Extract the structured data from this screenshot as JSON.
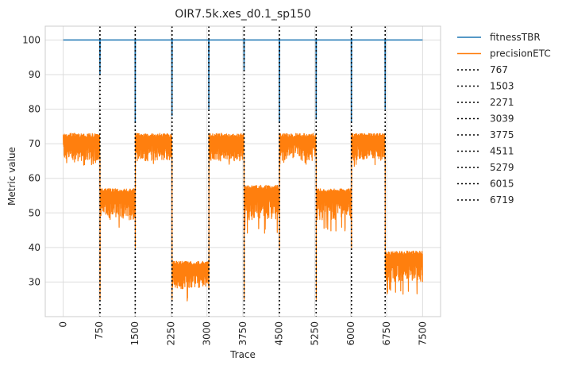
{
  "chart_data": {
    "type": "line",
    "title": "OIR7.5k.xes_d0.1_sp150",
    "xlabel": "Trace",
    "ylabel": "Metric value",
    "xlim": [
      -375,
      7875
    ],
    "ylim": [
      20,
      104
    ],
    "xticks": [
      0,
      750,
      1500,
      2250,
      3000,
      3750,
      4500,
      5250,
      6000,
      6750,
      7500
    ],
    "xtick_labels": [
      "0",
      "750",
      "1500",
      "2250",
      "3000",
      "3750",
      "4500",
      "5250",
      "6000",
      "6750",
      "7500"
    ],
    "yticks": [
      30,
      40,
      50,
      60,
      70,
      80,
      90,
      100
    ],
    "ytick_labels": [
      "30",
      "40",
      "50",
      "60",
      "70",
      "80",
      "90",
      "100"
    ],
    "grid": true,
    "legend_position": "outside-right",
    "series": [
      {
        "name": "fitnessTBR",
        "color": "#1f77b4",
        "base": 100,
        "dips": [
          [
            767,
            90
          ],
          [
            1503,
            76
          ],
          [
            2271,
            78
          ],
          [
            3039,
            80
          ],
          [
            3775,
            91
          ],
          [
            4511,
            76
          ],
          [
            5279,
            77
          ],
          [
            6015,
            76
          ],
          [
            6719,
            80
          ]
        ]
      },
      {
        "name": "precisionETC",
        "color": "#ff7f0e",
        "segments": [
          {
            "x_start": 0,
            "x_end": 767,
            "hi": 73,
            "lo": 65,
            "min_dip": 63
          },
          {
            "x_start": 767,
            "x_end": 1503,
            "hi": 57,
            "lo": 48,
            "min_dip": 44
          },
          {
            "x_start": 1503,
            "x_end": 2271,
            "hi": 73,
            "lo": 65,
            "min_dip": 63
          },
          {
            "x_start": 2271,
            "x_end": 3039,
            "hi": 36,
            "lo": 28,
            "min_dip": 24
          },
          {
            "x_start": 3039,
            "x_end": 3775,
            "hi": 73,
            "lo": 65,
            "min_dip": 64
          },
          {
            "x_start": 3775,
            "x_end": 4511,
            "hi": 58,
            "lo": 48,
            "min_dip": 44
          },
          {
            "x_start": 4511,
            "x_end": 5279,
            "hi": 73,
            "lo": 65,
            "min_dip": 64
          },
          {
            "x_start": 5279,
            "x_end": 6015,
            "hi": 57,
            "lo": 48,
            "min_dip": 44
          },
          {
            "x_start": 6015,
            "x_end": 6719,
            "hi": 73,
            "lo": 65,
            "min_dip": 63
          },
          {
            "x_start": 6719,
            "x_end": 7500,
            "hi": 39,
            "lo": 30,
            "min_dip": 26
          }
        ],
        "transition_lows": [
          25,
          40,
          25,
          32,
          25,
          40,
          25,
          40,
          32
        ]
      }
    ],
    "drift_lines": {
      "style": "dotted",
      "color": "#000000",
      "values": [
        767,
        1503,
        2271,
        3039,
        3775,
        4511,
        5279,
        6015,
        6719
      ],
      "labels": [
        "767",
        "1503",
        "2271",
        "3039",
        "3775",
        "4511",
        "5279",
        "6015",
        "6719"
      ]
    }
  }
}
